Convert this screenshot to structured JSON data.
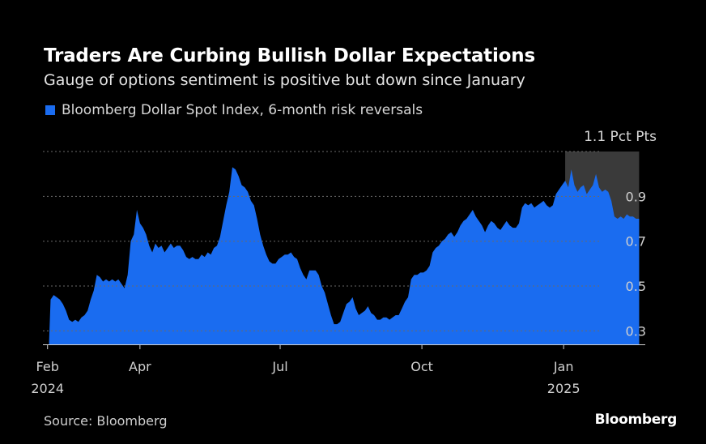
{
  "header": {
    "title": "Traders Are Curbing Bullish Dollar Expectations",
    "subtitle": "Gauge of options sentiment is positive but down since January"
  },
  "footer": {
    "source": "Source: Bloomberg",
    "brand": "Bloomberg"
  },
  "colors": {
    "background": "#000000",
    "series": "#1a6cf0",
    "highlight": "#3a3a3a",
    "grid": "#6a6a6a"
  },
  "chart_data": {
    "type": "area",
    "title": "Traders Are Curbing Bullish Dollar Expectations",
    "subtitle": "Gauge of options sentiment is positive but down since January",
    "unit_label": "1.1 Pct Pts",
    "ylim": [
      0.24,
      1.1
    ],
    "y_ticks": [
      {
        "value": 1.1,
        "label": "1.1 Pct Pts"
      },
      {
        "value": 0.9,
        "label": "0.9"
      },
      {
        "value": 0.7,
        "label": "0.7"
      },
      {
        "value": 0.5,
        "label": "0.5"
      },
      {
        "value": 0.3,
        "label": "0.3"
      }
    ],
    "x_range": [
      "2024-01-29",
      "2025-02-23"
    ],
    "x_ticks": [
      {
        "date": "2024-02-01",
        "label": "Feb",
        "sublabel": "2024"
      },
      {
        "date": "2024-04-01",
        "label": "Apr",
        "sublabel": ""
      },
      {
        "date": "2024-07-01",
        "label": "Jul",
        "sublabel": ""
      },
      {
        "date": "2024-10-01",
        "label": "Oct",
        "sublabel": ""
      },
      {
        "date": "2025-01-01",
        "label": "Jan",
        "sublabel": "2025"
      }
    ],
    "shaded_region": {
      "start": "2025-01-02",
      "end": "2025-02-19"
    },
    "grid": true,
    "legend": "top-left",
    "series": [
      {
        "name": "Bloomberg Dollar Spot Index, 6-month risk reversals",
        "points": [
          [
            "2024-02-02",
            0.25
          ],
          [
            "2024-02-03",
            0.44
          ],
          [
            "2024-02-05",
            0.46
          ],
          [
            "2024-02-07",
            0.45
          ],
          [
            "2024-02-09",
            0.44
          ],
          [
            "2024-02-11",
            0.42
          ],
          [
            "2024-02-13",
            0.39
          ],
          [
            "2024-02-15",
            0.35
          ],
          [
            "2024-02-17",
            0.34
          ],
          [
            "2024-02-19",
            0.35
          ],
          [
            "2024-02-21",
            0.34
          ],
          [
            "2024-02-23",
            0.36
          ],
          [
            "2024-02-25",
            0.37
          ],
          [
            "2024-02-27",
            0.39
          ],
          [
            "2024-02-29",
            0.44
          ],
          [
            "2024-03-02",
            0.48
          ],
          [
            "2024-03-04",
            0.55
          ],
          [
            "2024-03-06",
            0.54
          ],
          [
            "2024-03-08",
            0.52
          ],
          [
            "2024-03-10",
            0.53
          ],
          [
            "2024-03-12",
            0.52
          ],
          [
            "2024-03-14",
            0.53
          ],
          [
            "2024-03-16",
            0.52
          ],
          [
            "2024-03-18",
            0.53
          ],
          [
            "2024-03-20",
            0.51
          ],
          [
            "2024-03-22",
            0.49
          ],
          [
            "2024-03-24",
            0.55
          ],
          [
            "2024-03-26",
            0.7
          ],
          [
            "2024-03-28",
            0.73
          ],
          [
            "2024-03-30",
            0.84
          ],
          [
            "2024-04-01",
            0.78
          ],
          [
            "2024-04-03",
            0.76
          ],
          [
            "2024-04-05",
            0.73
          ],
          [
            "2024-04-07",
            0.68
          ],
          [
            "2024-04-09",
            0.65
          ],
          [
            "2024-04-11",
            0.69
          ],
          [
            "2024-04-13",
            0.67
          ],
          [
            "2024-04-15",
            0.68
          ],
          [
            "2024-04-17",
            0.65
          ],
          [
            "2024-04-19",
            0.67
          ],
          [
            "2024-04-21",
            0.69
          ],
          [
            "2024-04-23",
            0.67
          ],
          [
            "2024-04-25",
            0.68
          ],
          [
            "2024-04-27",
            0.68
          ],
          [
            "2024-04-29",
            0.66
          ],
          [
            "2024-05-01",
            0.63
          ],
          [
            "2024-05-03",
            0.62
          ],
          [
            "2024-05-05",
            0.63
          ],
          [
            "2024-05-07",
            0.62
          ],
          [
            "2024-05-09",
            0.62
          ],
          [
            "2024-05-11",
            0.64
          ],
          [
            "2024-05-13",
            0.63
          ],
          [
            "2024-05-15",
            0.65
          ],
          [
            "2024-05-17",
            0.64
          ],
          [
            "2024-05-19",
            0.67
          ],
          [
            "2024-05-21",
            0.68
          ],
          [
            "2024-05-23",
            0.72
          ],
          [
            "2024-05-25",
            0.79
          ],
          [
            "2024-05-27",
            0.86
          ],
          [
            "2024-05-29",
            0.92
          ],
          [
            "2024-05-31",
            1.03
          ],
          [
            "2024-06-02",
            1.02
          ],
          [
            "2024-06-04",
            0.99
          ],
          [
            "2024-06-06",
            0.95
          ],
          [
            "2024-06-08",
            0.94
          ],
          [
            "2024-06-10",
            0.92
          ],
          [
            "2024-06-12",
            0.88
          ],
          [
            "2024-06-14",
            0.86
          ],
          [
            "2024-06-16",
            0.8
          ],
          [
            "2024-06-18",
            0.73
          ],
          [
            "2024-06-20",
            0.68
          ],
          [
            "2024-06-22",
            0.64
          ],
          [
            "2024-06-24",
            0.61
          ],
          [
            "2024-06-26",
            0.6
          ],
          [
            "2024-06-28",
            0.6
          ],
          [
            "2024-06-30",
            0.62
          ],
          [
            "2024-07-02",
            0.63
          ],
          [
            "2024-07-04",
            0.64
          ],
          [
            "2024-07-06",
            0.64
          ],
          [
            "2024-07-08",
            0.65
          ],
          [
            "2024-07-10",
            0.63
          ],
          [
            "2024-07-12",
            0.62
          ],
          [
            "2024-07-14",
            0.58
          ],
          [
            "2024-07-16",
            0.55
          ],
          [
            "2024-07-18",
            0.53
          ],
          [
            "2024-07-20",
            0.57
          ],
          [
            "2024-07-22",
            0.57
          ],
          [
            "2024-07-24",
            0.57
          ],
          [
            "2024-07-26",
            0.55
          ],
          [
            "2024-07-28",
            0.5
          ],
          [
            "2024-07-30",
            0.47
          ],
          [
            "2024-08-01",
            0.42
          ],
          [
            "2024-08-03",
            0.37
          ],
          [
            "2024-08-05",
            0.33
          ],
          [
            "2024-08-07",
            0.33
          ],
          [
            "2024-08-09",
            0.34
          ],
          [
            "2024-08-11",
            0.38
          ],
          [
            "2024-08-13",
            0.42
          ],
          [
            "2024-08-15",
            0.43
          ],
          [
            "2024-08-17",
            0.45
          ],
          [
            "2024-08-19",
            0.4
          ],
          [
            "2024-08-21",
            0.37
          ],
          [
            "2024-08-23",
            0.38
          ],
          [
            "2024-08-25",
            0.39
          ],
          [
            "2024-08-27",
            0.41
          ],
          [
            "2024-08-29",
            0.38
          ],
          [
            "2024-08-31",
            0.37
          ],
          [
            "2024-09-02",
            0.35
          ],
          [
            "2024-09-04",
            0.35
          ],
          [
            "2024-09-06",
            0.36
          ],
          [
            "2024-09-08",
            0.36
          ],
          [
            "2024-09-10",
            0.35
          ],
          [
            "2024-09-12",
            0.36
          ],
          [
            "2024-09-14",
            0.37
          ],
          [
            "2024-09-16",
            0.37
          ],
          [
            "2024-09-18",
            0.4
          ],
          [
            "2024-09-20",
            0.43
          ],
          [
            "2024-09-22",
            0.45
          ],
          [
            "2024-09-24",
            0.53
          ],
          [
            "2024-09-26",
            0.55
          ],
          [
            "2024-09-28",
            0.55
          ],
          [
            "2024-09-30",
            0.56
          ],
          [
            "2024-10-02",
            0.56
          ],
          [
            "2024-10-04",
            0.57
          ],
          [
            "2024-10-06",
            0.59
          ],
          [
            "2024-10-08",
            0.65
          ],
          [
            "2024-10-10",
            0.67
          ],
          [
            "2024-10-12",
            0.68
          ],
          [
            "2024-10-14",
            0.7
          ],
          [
            "2024-10-16",
            0.71
          ],
          [
            "2024-10-18",
            0.73
          ],
          [
            "2024-10-20",
            0.74
          ],
          [
            "2024-10-22",
            0.72
          ],
          [
            "2024-10-24",
            0.74
          ],
          [
            "2024-10-26",
            0.77
          ],
          [
            "2024-10-28",
            0.79
          ],
          [
            "2024-10-30",
            0.8
          ],
          [
            "2024-11-01",
            0.82
          ],
          [
            "2024-11-03",
            0.84
          ],
          [
            "2024-11-05",
            0.81
          ],
          [
            "2024-11-07",
            0.79
          ],
          [
            "2024-11-09",
            0.77
          ],
          [
            "2024-11-11",
            0.74
          ],
          [
            "2024-11-13",
            0.77
          ],
          [
            "2024-11-15",
            0.79
          ],
          [
            "2024-11-17",
            0.78
          ],
          [
            "2024-11-19",
            0.76
          ],
          [
            "2024-11-21",
            0.75
          ],
          [
            "2024-11-23",
            0.77
          ],
          [
            "2024-11-25",
            0.79
          ],
          [
            "2024-11-27",
            0.77
          ],
          [
            "2024-11-29",
            0.76
          ],
          [
            "2024-12-01",
            0.76
          ],
          [
            "2024-12-03",
            0.78
          ],
          [
            "2024-12-05",
            0.85
          ],
          [
            "2024-12-07",
            0.87
          ],
          [
            "2024-12-09",
            0.86
          ],
          [
            "2024-12-11",
            0.87
          ],
          [
            "2024-12-13",
            0.85
          ],
          [
            "2024-12-15",
            0.86
          ],
          [
            "2024-12-17",
            0.87
          ],
          [
            "2024-12-19",
            0.88
          ],
          [
            "2024-12-21",
            0.86
          ],
          [
            "2024-12-23",
            0.85
          ],
          [
            "2024-12-25",
            0.86
          ],
          [
            "2024-12-27",
            0.91
          ],
          [
            "2024-12-29",
            0.93
          ],
          [
            "2024-12-31",
            0.95
          ],
          [
            "2025-01-02",
            0.97
          ],
          [
            "2025-01-04",
            0.94
          ],
          [
            "2025-01-06",
            1.02
          ],
          [
            "2025-01-08",
            0.95
          ],
          [
            "2025-01-10",
            0.92
          ],
          [
            "2025-01-12",
            0.94
          ],
          [
            "2025-01-14",
            0.95
          ],
          [
            "2025-01-16",
            0.91
          ],
          [
            "2025-01-18",
            0.93
          ],
          [
            "2025-01-20",
            0.95
          ],
          [
            "2025-01-22",
            1.0
          ],
          [
            "2025-01-24",
            0.94
          ],
          [
            "2025-01-26",
            0.92
          ],
          [
            "2025-01-28",
            0.93
          ],
          [
            "2025-01-30",
            0.92
          ],
          [
            "2025-02-01",
            0.88
          ],
          [
            "2025-02-03",
            0.81
          ],
          [
            "2025-02-05",
            0.8
          ],
          [
            "2025-02-07",
            0.81
          ],
          [
            "2025-02-09",
            0.8
          ],
          [
            "2025-02-11",
            0.82
          ],
          [
            "2025-02-13",
            0.81
          ],
          [
            "2025-02-15",
            0.81
          ],
          [
            "2025-02-17",
            0.8
          ],
          [
            "2025-02-19",
            0.8
          ]
        ]
      }
    ]
  }
}
